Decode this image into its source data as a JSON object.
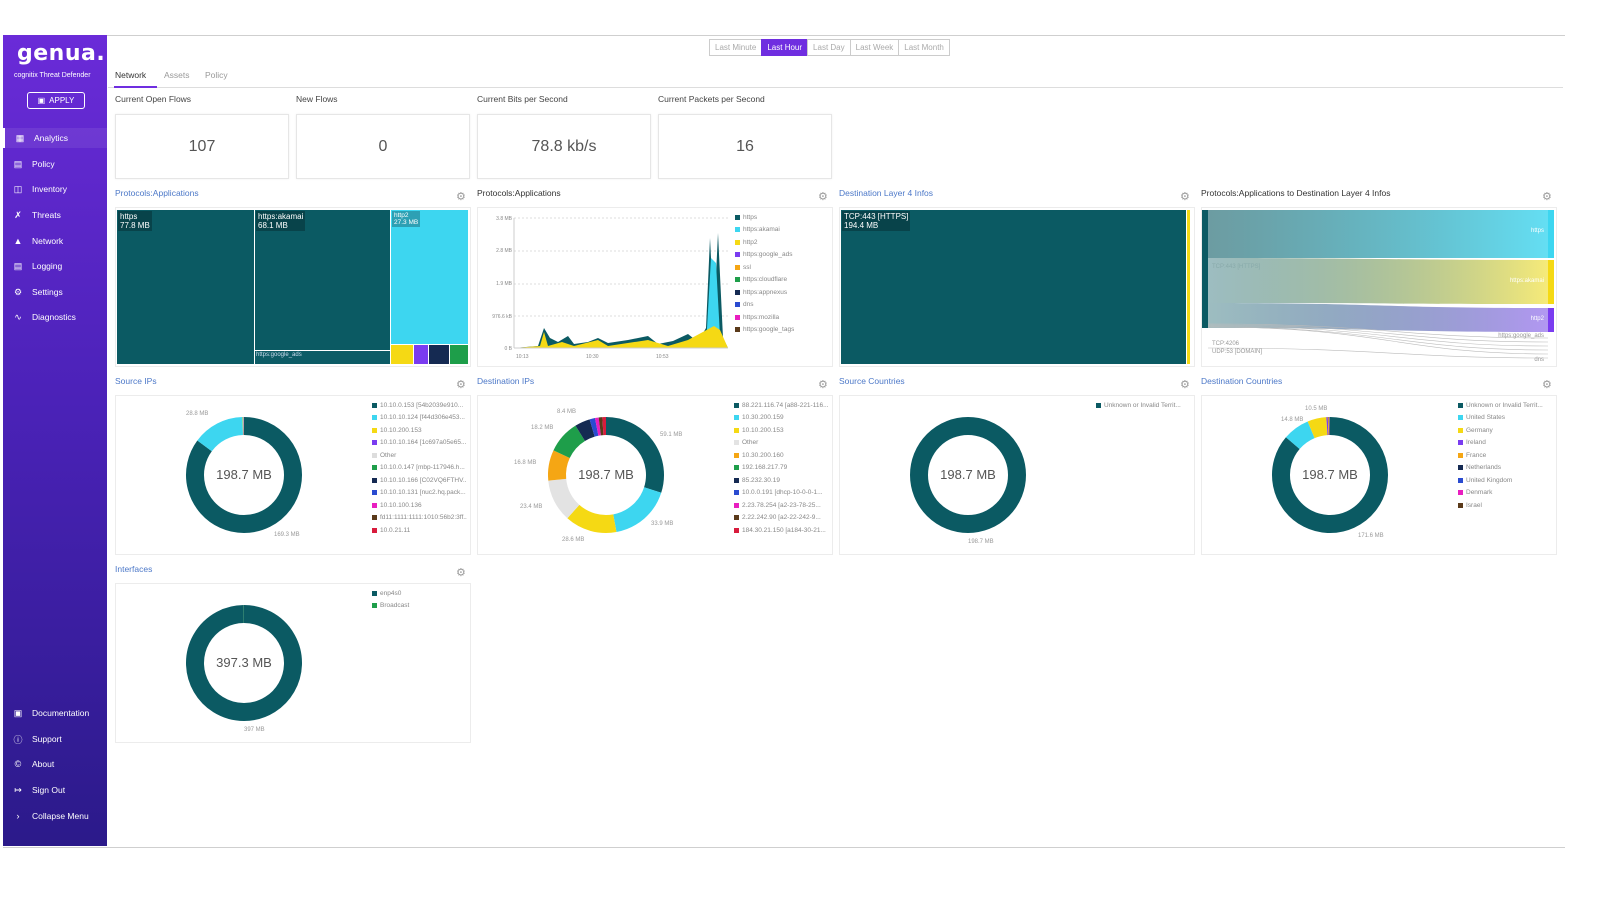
{
  "brand": {
    "logo": "genua.",
    "subtitle": "cognitix Threat Defender",
    "apply": "APPLY"
  },
  "nav": {
    "items": [
      {
        "label": "Analytics",
        "icon": "dashboard-icon"
      },
      {
        "label": "Policy",
        "icon": "policy-icon"
      },
      {
        "label": "Inventory",
        "icon": "inventory-icon"
      },
      {
        "label": "Threats",
        "icon": "threats-icon"
      },
      {
        "label": "Network",
        "icon": "network-icon"
      },
      {
        "label": "Logging",
        "icon": "logging-icon"
      },
      {
        "label": "Settings",
        "icon": "gear-icon"
      },
      {
        "label": "Diagnostics",
        "icon": "pulse-icon"
      }
    ],
    "bottom": [
      {
        "label": "Documentation",
        "icon": "book-icon"
      },
      {
        "label": "Support",
        "icon": "help-icon"
      },
      {
        "label": "About",
        "icon": "info-icon"
      },
      {
        "label": "Sign Out",
        "icon": "sign-out-icon"
      },
      {
        "label": "Collapse Menu",
        "icon": "chevron-right-icon"
      }
    ]
  },
  "timerange": {
    "options": [
      "Last Minute",
      "Last Hour",
      "Last Day",
      "Last Week",
      "Last Month"
    ],
    "selected": "Last Hour"
  },
  "tabs": [
    "Network",
    "Assets",
    "Policy"
  ],
  "stats": [
    {
      "title": "Current Open Flows",
      "value": "107"
    },
    {
      "title": "New Flows",
      "value": "0"
    },
    {
      "title": "Current Bits per Second",
      "value": "78.8 kb/s"
    },
    {
      "title": "Current Packets per Second",
      "value": "16"
    }
  ],
  "panels": {
    "treemap": {
      "title": "Protocols:Applications",
      "cells": [
        {
          "name": "https",
          "value": "77.8 MB"
        },
        {
          "name": "https:akamai",
          "value": "68.1 MB"
        },
        {
          "name": "http2",
          "value": "27.3 MB"
        }
      ],
      "small_label": "https:google_ads"
    },
    "area": {
      "title": "Protocols:Applications",
      "chart_data": {
        "type": "area",
        "x": [
          "10:13",
          "10:30",
          "10:53"
        ],
        "yticks": [
          "3.8 MB",
          "2.8 MB",
          "1.9 MB",
          "976.6 kB",
          "0 B"
        ],
        "series": [
          {
            "name": "https",
            "color": "#0b5a63"
          },
          {
            "name": "https:akamai",
            "color": "#3dd6f0"
          },
          {
            "name": "http2",
            "color": "#f5d914"
          },
          {
            "name": "https:google_ads",
            "color": "#7a3cf0"
          },
          {
            "name": "ssl",
            "color": "#f5a614"
          },
          {
            "name": "https:cloudflare",
            "color": "#1e9e4a"
          },
          {
            "name": "https:appnexus",
            "color": "#152a52"
          },
          {
            "name": "dns",
            "color": "#2a4bd0"
          },
          {
            "name": "https:mozilla",
            "color": "#e91ec0"
          },
          {
            "name": "https:google_tags",
            "color": "#5a3a1a"
          }
        ]
      }
    },
    "dest_l4": {
      "title": "Destination Layer 4 Infos",
      "cell": {
        "name": "TCP:443 [HTTPS]",
        "value": "194.4 MB"
      }
    },
    "sankey": {
      "title": "Protocols:Applications to Destination Layer 4 Infos",
      "left": [
        "TCP:443 [HTTPS]",
        "TCP:4206",
        "UDP:53 [DOMAIN]"
      ],
      "right": [
        "https",
        "https:akamai",
        "http2",
        "https:google_ads",
        "dns"
      ]
    },
    "source_ips": {
      "title": "Source IPs",
      "total": "198.7 MB",
      "labels": {
        "top": "28.8 MB",
        "bottom": "169.3 MB"
      },
      "chart_data": {
        "type": "pie",
        "slices": [
          {
            "label": "10.10.0.153 [54b2039e910...",
            "value": 169.3,
            "color": "#0b5a63"
          },
          {
            "label": "10.10.10.124 [f44d306e453...",
            "value": 28.8,
            "color": "#3dd6f0"
          },
          {
            "label": "10.10.200.153",
            "value": 0.3,
            "color": "#f5d914"
          },
          {
            "label": "10.10.10.164 [1c697a05e65...",
            "value": 0.1,
            "color": "#7a3cf0"
          },
          {
            "label": "Other",
            "value": 0.1,
            "color": "#dddddd"
          },
          {
            "label": "10.10.0.147 [mbp-117946.h...",
            "value": 0.05,
            "color": "#1e9e4a"
          },
          {
            "label": "10.10.10.166 [C02VQ6FTHV...",
            "value": 0.05,
            "color": "#152a52"
          },
          {
            "label": "10.10.10.131 [nuc2.hq.pack...",
            "value": 0.05,
            "color": "#2a4bd0"
          },
          {
            "label": "10.10.100.136",
            "value": 0.05,
            "color": "#e91ec0"
          },
          {
            "label": "fd11:1111:1111:1010:56b2:3ff...",
            "value": 0.05,
            "color": "#5a3a1a"
          },
          {
            "label": "10.0.21.11",
            "value": 0.05,
            "color": "#d81b3c"
          }
        ]
      }
    },
    "dest_ips": {
      "title": "Destination IPs",
      "total": "198.7 MB",
      "chart_data": {
        "type": "pie",
        "slices": [
          {
            "label": "88.221.116.74 [a88-221-116...",
            "value": 59.1,
            "color": "#0b5a63"
          },
          {
            "label": "10.30.200.159",
            "value": 33.9,
            "color": "#3dd6f0"
          },
          {
            "label": "10.10.200.153",
            "value": 28.6,
            "color": "#f5d914"
          },
          {
            "label": "Other",
            "value": 23.4,
            "color": "#e3e3e3"
          },
          {
            "label": "10.30.200.160",
            "value": 16.8,
            "color": "#f5a614"
          },
          {
            "label": "192.168.217.79",
            "value": 18.2,
            "color": "#1e9e4a"
          },
          {
            "label": "85.232.30.19",
            "value": 8.4,
            "color": "#152a52"
          },
          {
            "label": "10.0.0.191 [dhcp-10-0-0-1...",
            "value": 3,
            "color": "#2a4bd0"
          },
          {
            "label": "2.23.78.254 [a2-23-78-25...",
            "value": 2,
            "color": "#e91ec0"
          },
          {
            "label": "2.22.242.90 [a2-22-242-9...",
            "value": 2,
            "color": "#5a3a1a"
          },
          {
            "label": "184.30.21.150 [a184-30-21...",
            "value": 2,
            "color": "#d81b3c"
          }
        ]
      },
      "labels": [
        "59.1 MB",
        "33.9 MB",
        "28.6 MB",
        "23.4 MB",
        "16.8 MB",
        "18.2 MB",
        "8.4 MB"
      ]
    },
    "source_countries": {
      "title": "Source Countries",
      "total": "198.7 MB",
      "bottom": "198.7 MB",
      "chart_data": {
        "type": "pie",
        "slices": [
          {
            "label": "Unknown or Invalid Territ...",
            "value": 198.7,
            "color": "#0b5a63"
          }
        ]
      }
    },
    "dest_countries": {
      "title": "Destination Countries",
      "total": "198.7 MB",
      "labels": {
        "a": "10.5 MB",
        "b": "14.8 MB",
        "bottom": "171.6 MB"
      },
      "chart_data": {
        "type": "pie",
        "slices": [
          {
            "label": "Unknown or Invalid Territ...",
            "value": 171.6,
            "color": "#0b5a63"
          },
          {
            "label": "United States",
            "value": 14.8,
            "color": "#3dd6f0"
          },
          {
            "label": "Germany",
            "value": 10.5,
            "color": "#f5d914"
          },
          {
            "label": "Ireland",
            "value": 0.8,
            "color": "#7a3cf0"
          },
          {
            "label": "France",
            "value": 0.5,
            "color": "#f5a614"
          },
          {
            "label": "Netherlands",
            "value": 0.3,
            "color": "#152a52"
          },
          {
            "label": "United Kingdom",
            "value": 0.2,
            "color": "#2a4bd0"
          },
          {
            "label": "Denmark",
            "value": 0.1,
            "color": "#e91ec0"
          },
          {
            "label": "Israel",
            "value": 0.1,
            "color": "#5a3a1a"
          }
        ]
      }
    },
    "interfaces": {
      "title": "Interfaces",
      "total": "397.3 MB",
      "bottom": "397 MB",
      "chart_data": {
        "type": "pie",
        "slices": [
          {
            "label": "enp4s0",
            "value": 397,
            "color": "#0b5a63"
          },
          {
            "label": "Broadcast",
            "value": 0.3,
            "color": "#1e9e4a"
          }
        ]
      }
    }
  }
}
